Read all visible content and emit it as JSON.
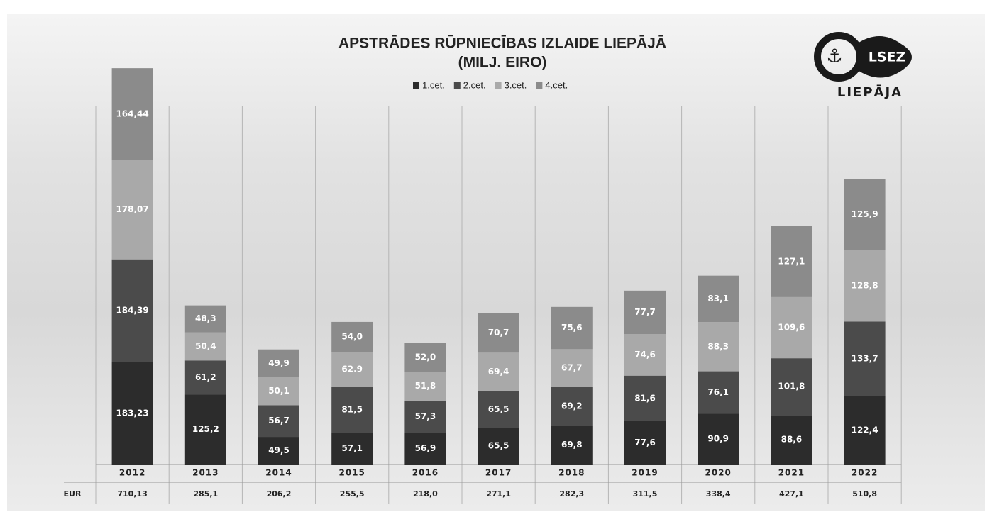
{
  "chart_data": {
    "type": "stacked-bar",
    "title": "APSTRĀDES RŪPNIECĪBAS IZLAIDE LIEPĀJĀ",
    "subtitle": "(MILJ. EIRO)",
    "categories": [
      "2012",
      "2013",
      "2014",
      "2015",
      "2016",
      "2017",
      "2018",
      "2019",
      "2020",
      "2021",
      "2022"
    ],
    "series": [
      {
        "name": "1.cet.",
        "color": "#2c2c2c",
        "values": [
          183.23,
          125.2,
          49.5,
          57.1,
          56.9,
          65.5,
          69.8,
          77.6,
          90.9,
          88.6,
          122.4
        ],
        "value_labels": [
          "183,23",
          "125,2",
          "49,5",
          "57,1",
          "56,9",
          "65,5",
          "69,8",
          "77,6",
          "90,9",
          "88,6",
          "122,4"
        ]
      },
      {
        "name": "2.cet.",
        "color": "#4b4b4b",
        "values": [
          184.39,
          61.2,
          56.7,
          81.5,
          57.3,
          65.5,
          69.2,
          81.6,
          76.1,
          101.8,
          133.7
        ],
        "value_labels": [
          "184,39",
          "61,2",
          "56,7",
          "81,5",
          "57,3",
          "65,5",
          "69,2",
          "81,6",
          "76,1",
          "101,8",
          "133,7"
        ]
      },
      {
        "name": "3.cet.",
        "color": "#a9a9a9",
        "values": [
          178.07,
          50.4,
          50.1,
          62.9,
          51.8,
          69.4,
          67.7,
          74.6,
          88.3,
          109.6,
          128.8
        ],
        "value_labels": [
          "178,07",
          "50,4",
          "50,1",
          "62.9",
          "51,8",
          "69,4",
          "67,7",
          "74,6",
          "88,3",
          "109,6",
          "128,8"
        ]
      },
      {
        "name": "4.cet.",
        "color": "#8b8b8b",
        "values": [
          164.44,
          48.3,
          49.9,
          54.0,
          52.0,
          70.7,
          75.6,
          77.7,
          83.1,
          127.1,
          125.9
        ],
        "value_labels": [
          "164,44",
          "48,3",
          "49,9",
          "54,0",
          "52,0",
          "70,7",
          "75,6",
          "77,7",
          "83,1",
          "127,1",
          "125,9"
        ]
      }
    ],
    "totals": {
      "label": "EUR",
      "values": [
        710.13,
        285.1,
        206.2,
        255.5,
        218.0,
        271.1,
        282.3,
        311.5,
        338.4,
        427.1,
        510.8
      ],
      "value_labels": [
        "710,13",
        "285,1",
        "206,2",
        "255,5",
        "218,0",
        "271,1",
        "282,3",
        "311,5",
        "338,4",
        "427,1",
        "510,8"
      ]
    }
  },
  "logo": {
    "text": "LSEZ",
    "caption": "LIEPĀJA"
  }
}
